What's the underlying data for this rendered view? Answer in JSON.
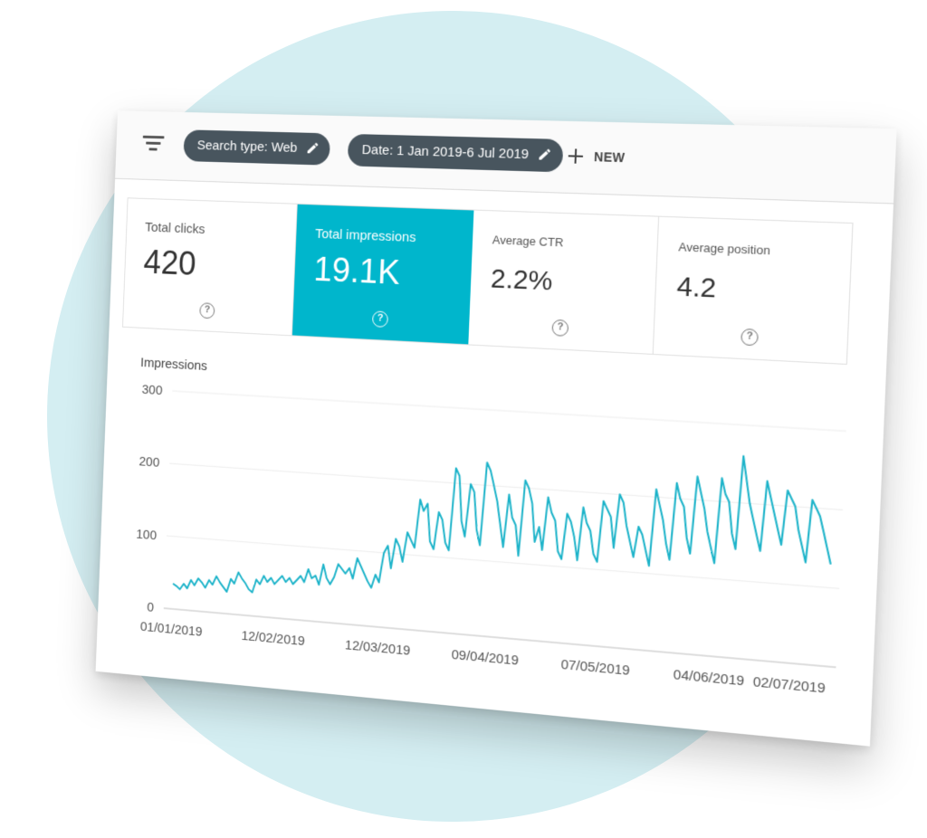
{
  "colors": {
    "accent": "#00b6cc",
    "chip": "#48555e",
    "circle": "#d4eef2",
    "line": "#1cb3c9"
  },
  "toolbar": {
    "chips": [
      {
        "label": "Search type: Web",
        "icon": "pencil-icon"
      },
      {
        "label": "Date: 1 Jan 2019-6 Jul 2019",
        "icon": "pencil-icon"
      }
    ],
    "new_label": "NEW"
  },
  "metrics": [
    {
      "label": "Total clicks",
      "value": "420",
      "active": false
    },
    {
      "label": "Total impressions",
      "value": "19.1K",
      "active": true
    },
    {
      "label": "Average CTR",
      "value": "2.2%",
      "active": false
    },
    {
      "label": "Average position",
      "value": "4.2",
      "active": false
    }
  ],
  "help_glyph": "?",
  "chart_data": {
    "type": "line",
    "ylabel": "Impressions",
    "ylim": [
      0,
      300
    ],
    "yticks": [
      "0",
      "100",
      "200",
      "300"
    ],
    "xticks": [
      "01/01/2019",
      "12/02/2019",
      "12/03/2019",
      "09/04/2019",
      "07/05/2019",
      "04/06/2019",
      "02/07/2019"
    ],
    "grid": true,
    "series": [
      {
        "values": [
          35,
          32,
          28,
          36,
          30,
          42,
          35,
          45,
          40,
          33,
          44,
          38,
          50,
          42,
          36,
          30,
          48,
          42,
          58,
          50,
          44,
          36,
          32,
          50,
          44,
          56,
          48,
          54,
          46,
          52,
          58,
          50,
          56,
          48,
          54,
          60,
          52,
          70,
          58,
          62,
          50,
          78,
          60,
          52,
          62,
          80,
          74,
          68,
          76,
          62,
          90,
          80,
          70,
          60,
          52,
          70,
          60,
          100,
          110,
          80,
          120,
          110,
          90,
          130,
          120,
          110,
          175,
          160,
          170,
          120,
          110,
          160,
          150,
          120,
          110,
          220,
          210,
          150,
          130,
          200,
          190,
          140,
          120,
          230,
          220,
          200,
          180,
          150,
          120,
          190,
          160,
          150,
          110,
          210,
          200,
          180,
          130,
          150,
          120,
          190,
          170,
          160,
          120,
          110,
          170,
          160,
          140,
          110,
          180,
          160,
          150,
          120,
          110,
          190,
          180,
          170,
          130,
          200,
          190,
          160,
          140,
          120,
          160,
          150,
          130,
          110,
          210,
          190,
          170,
          140,
          120,
          220,
          200,
          190,
          150,
          130,
          230,
          210,
          190,
          160,
          140,
          120,
          230,
          210,
          200,
          160,
          140,
          260,
          230,
          200,
          180,
          160,
          140,
          230,
          210,
          190,
          170,
          150,
          220,
          210,
          200,
          170,
          150,
          130,
          210,
          200,
          190,
          170,
          150,
          130
        ]
      }
    ]
  }
}
